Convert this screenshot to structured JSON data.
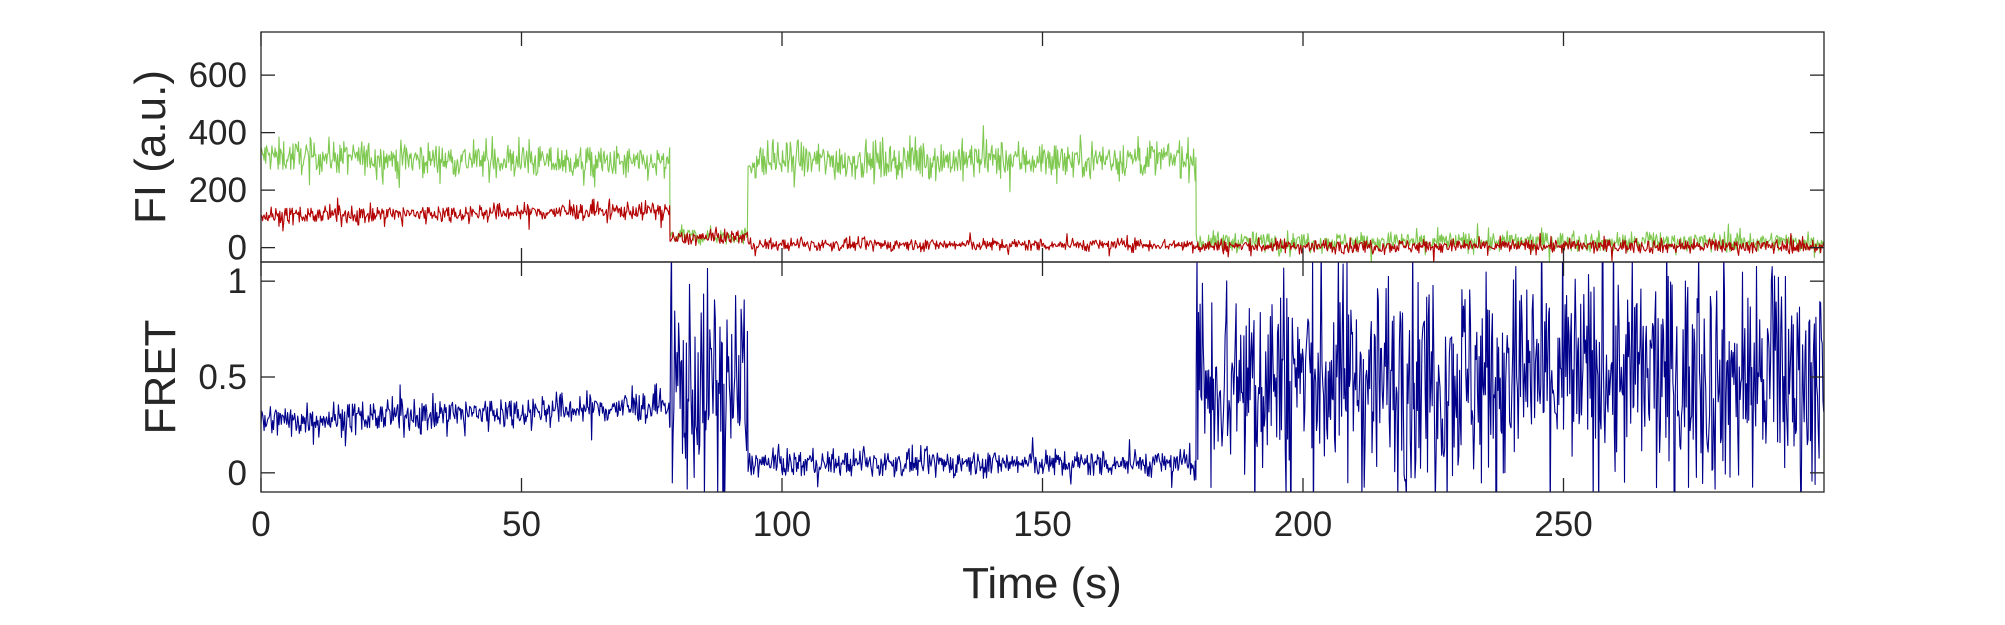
{
  "chart_data": [
    {
      "type": "line",
      "panel": "top",
      "ylabel": "FI (a.u.)",
      "xlabel": "",
      "xlim": [
        0,
        300
      ],
      "ylim": [
        -50,
        750
      ],
      "yticks": [
        0,
        200,
        400,
        600
      ],
      "grid": false,
      "series": [
        {
          "color": "#7ec850",
          "segments": [
            {
              "x": [
                0,
                78.5
              ],
              "mean": [
                320,
                290
              ],
              "noise": 75
            },
            {
              "x": [
                78.5,
                93.5
              ],
              "mean": [
                40,
                40
              ],
              "noise": 38
            },
            {
              "x": [
                93.5,
                179.5
              ],
              "mean": [
                300,
                310
              ],
              "noise": 85
            },
            {
              "x": [
                179.5,
                300
              ],
              "mean": [
                20,
                20
              ],
              "noise": 45
            }
          ]
        },
        {
          "color": "#b30000",
          "segments": [
            {
              "x": [
                0,
                78.5
              ],
              "mean": [
                110,
                130
              ],
              "noise": 40
            },
            {
              "x": [
                78.5,
                93.5
              ],
              "mean": [
                30,
                40
              ],
              "noise": 32
            },
            {
              "x": [
                93.5,
                179.5
              ],
              "mean": [
                10,
                10
              ],
              "noise": 28
            },
            {
              "x": [
                179.5,
                300
              ],
              "mean": [
                5,
                5
              ],
              "noise": 32
            }
          ]
        }
      ]
    },
    {
      "type": "line",
      "panel": "bottom",
      "ylabel": "FRET",
      "xlabel": "Time (s)",
      "xlim": [
        0,
        300
      ],
      "ylim": [
        -0.1,
        1.1
      ],
      "yticks": [
        0,
        0.5,
        1
      ],
      "ytick_labels": [
        "0",
        "0.5",
        "1"
      ],
      "xticks": [
        0,
        50,
        100,
        150,
        200,
        250
      ],
      "grid": false,
      "series": [
        {
          "color": "#00008b",
          "segments": [
            {
              "x": [
                0,
                78.5
              ],
              "mean": [
                0.27,
                0.35
              ],
              "noise": 0.11
            },
            {
              "x": [
                78.5,
                93.5
              ],
              "mean": [
                0.45,
                0.45
              ],
              "noise": 0.7
            },
            {
              "x": [
                93.5,
                179.5
              ],
              "mean": [
                0.05,
                0.05
              ],
              "noise": 0.09
            },
            {
              "x": [
                179.5,
                300
              ],
              "mean": [
                0.5,
                0.5
              ],
              "noise": 0.75
            }
          ]
        }
      ]
    }
  ]
}
